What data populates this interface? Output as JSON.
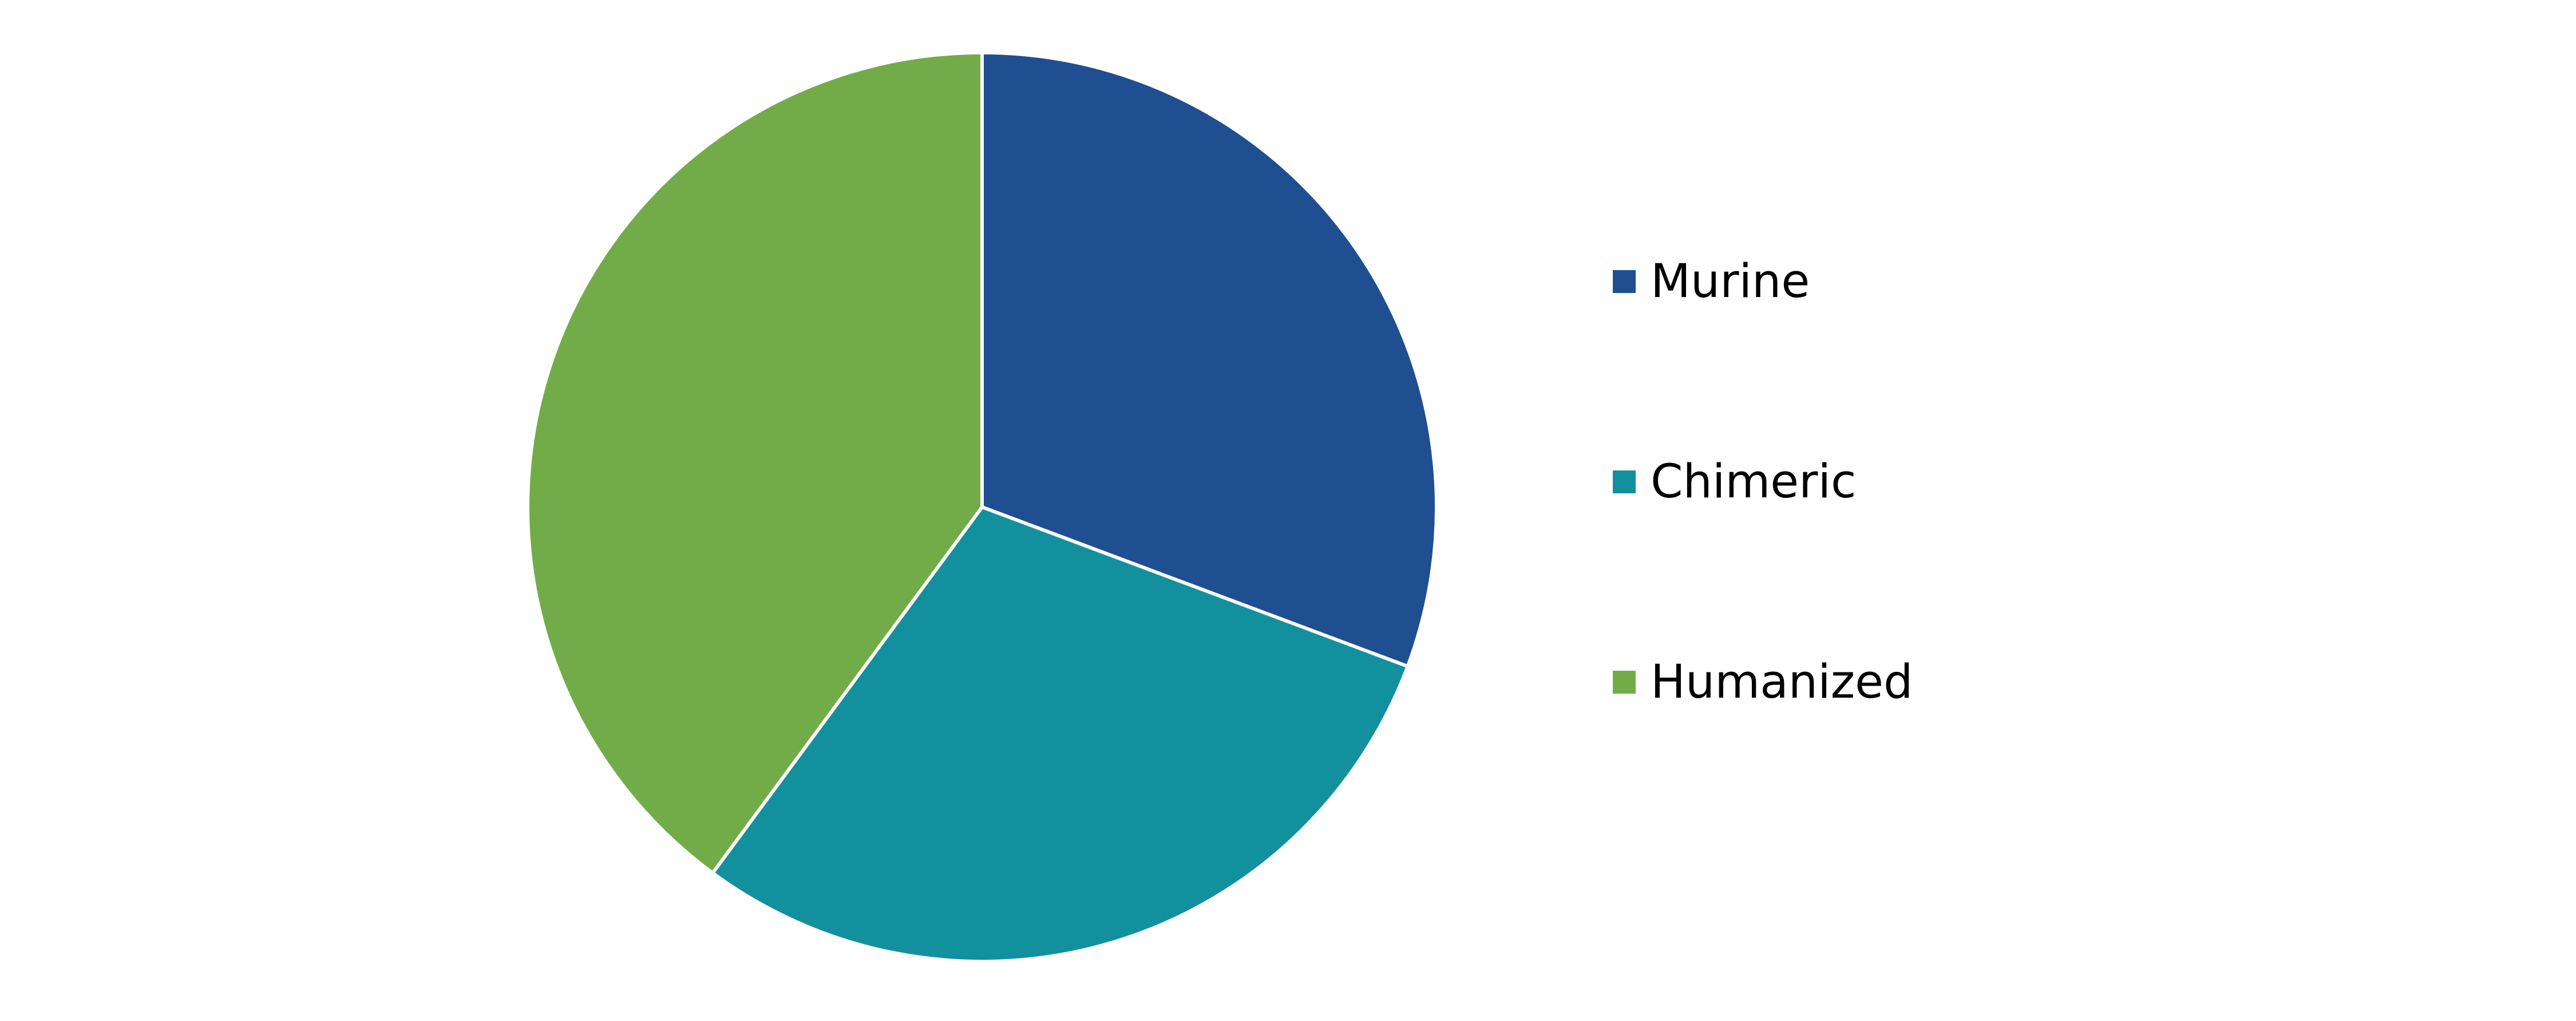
{
  "chart_data": {
    "type": "pie",
    "title": "",
    "legend_position": "right",
    "start_angle_deg": 0,
    "direction": "clockwise",
    "slice_border_color": "#ffffff",
    "slices": [
      {
        "label": "Murine",
        "value": 30.7,
        "color": "#1F4E91"
      },
      {
        "label": "Chimeric",
        "value": 29.4,
        "color": "#13909D"
      },
      {
        "label": "Humanized",
        "value": 39.9,
        "color": "#72AC48"
      }
    ]
  }
}
